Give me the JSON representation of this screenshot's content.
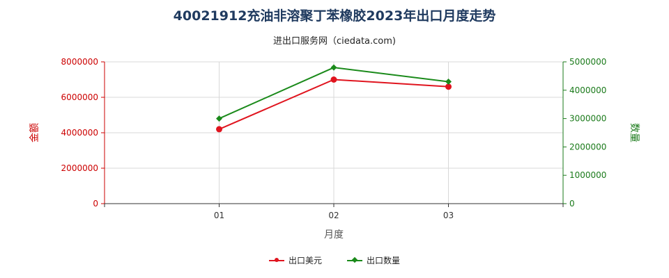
{
  "title": "40021912充油非溶聚丁苯橡胶2023年出口月度走势",
  "subtitle": "进出口服务网（ciedata.com)",
  "chart_data": {
    "type": "line",
    "categories": [
      "01",
      "02",
      "03"
    ],
    "xlabel": "月度",
    "ylabel_left": "金额",
    "ylabel_right": "数量",
    "ylim_left": [
      0,
      8000000
    ],
    "ylim_right": [
      0,
      5000000
    ],
    "yticks_left": [
      "0",
      "2000000",
      "4000000",
      "6000000",
      "8000000"
    ],
    "yticks_right": [
      "0",
      "1000000",
      "2000000",
      "3000000",
      "4000000",
      "5000000"
    ],
    "grid": true,
    "legend_position": "bottom",
    "series": [
      {
        "name": "出口美元",
        "axis": "left",
        "color": "#e0141e",
        "marker": "circle",
        "values": [
          4200000,
          7000000,
          6600000
        ]
      },
      {
        "name": "出口数量",
        "axis": "right",
        "color": "#1a8a1a",
        "marker": "diamond",
        "values": [
          3000000,
          4800000,
          4300000
        ]
      }
    ]
  }
}
